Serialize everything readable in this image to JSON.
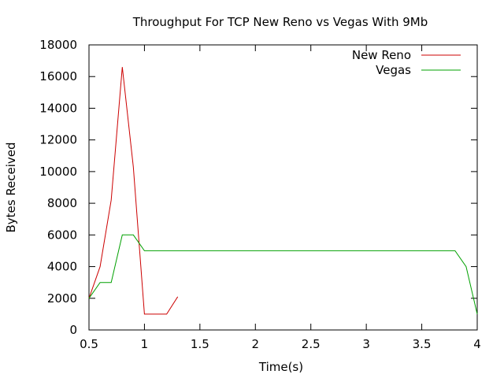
{
  "chart_data": {
    "type": "line",
    "title": "Throughput For TCP New Reno vs Vegas With 9Mb",
    "xlabel": "Time(s)",
    "ylabel": "Bytes Received",
    "xlim": [
      0.5,
      4
    ],
    "ylim": [
      0,
      18000
    ],
    "xticks": [
      0.5,
      1,
      1.5,
      2,
      2.5,
      3,
      3.5,
      4
    ],
    "xtick_labels": [
      "0.5",
      "1",
      "1.5",
      "2",
      "2.5",
      "3",
      "3.5",
      "4"
    ],
    "yticks": [
      0,
      2000,
      4000,
      6000,
      8000,
      10000,
      12000,
      14000,
      16000,
      18000
    ],
    "ytick_labels": [
      "0",
      "2000",
      "4000",
      "6000",
      "8000",
      "10000",
      "12000",
      "14000",
      "16000",
      "18000"
    ],
    "legend_position": "top-right",
    "series": [
      {
        "name": "New Reno",
        "color": "#cc0000",
        "x": [
          0.5,
          0.6,
          0.7,
          0.8,
          0.9,
          1.0,
          1.1,
          1.2,
          1.3
        ],
        "y": [
          2000,
          4000,
          8200,
          16600,
          10300,
          1000,
          1000,
          1000,
          2100
        ]
      },
      {
        "name": "Vegas",
        "color": "#00a000",
        "x": [
          0.5,
          0.6,
          0.7,
          0.8,
          0.9,
          1.0,
          3.8,
          3.9,
          4.0
        ],
        "y": [
          2000,
          3000,
          3000,
          6000,
          6000,
          5000,
          5000,
          4000,
          1000
        ]
      }
    ]
  }
}
